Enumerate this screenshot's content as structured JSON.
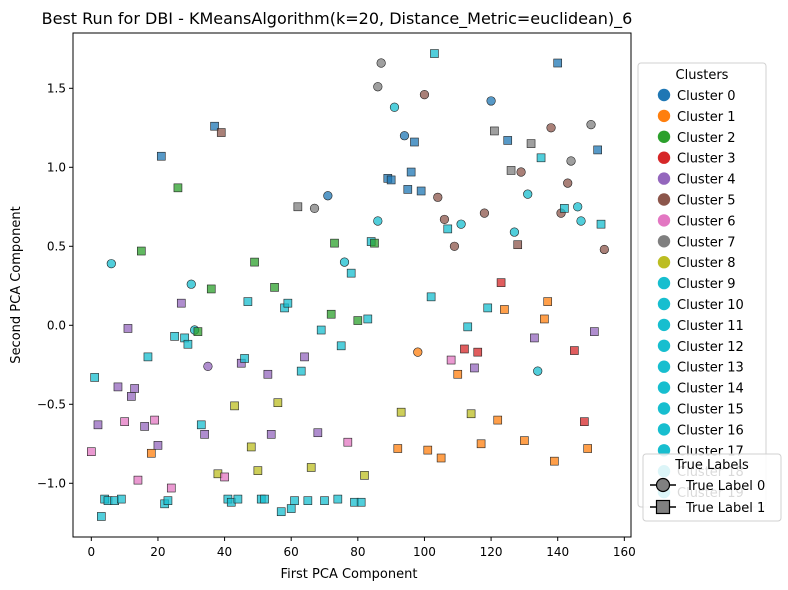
{
  "chart_data": {
    "type": "scatter",
    "title": "Best Run for DBI - KMeansAlgorithm(k=20, Distance_Metric=euclidean)_6",
    "xlabel": "First PCA Component",
    "ylabel": "Second PCA Component",
    "xlim": [
      -5.5,
      162
    ],
    "ylim": [
      -1.34,
      1.85
    ],
    "xticks": [
      0,
      20,
      40,
      60,
      80,
      100,
      120,
      140,
      160
    ],
    "yticks": [
      -1.0,
      -0.5,
      0.0,
      0.5,
      1.0,
      1.5
    ],
    "xtick_labels": [
      "0",
      "20",
      "40",
      "60",
      "80",
      "100",
      "120",
      "140",
      "160"
    ],
    "ytick_labels": [
      "−1.0",
      "−0.5",
      "0.0",
      "0.5",
      "1.0",
      "1.5"
    ],
    "grid": false,
    "legend_clusters": {
      "title": "Clusters",
      "placement": "right",
      "entries": [
        {
          "label": "Cluster 0",
          "color": "#1f77b4"
        },
        {
          "label": "Cluster 1",
          "color": "#ff7f0e"
        },
        {
          "label": "Cluster 2",
          "color": "#2ca02c"
        },
        {
          "label": "Cluster 3",
          "color": "#d62728"
        },
        {
          "label": "Cluster 4",
          "color": "#9467bd"
        },
        {
          "label": "Cluster 5",
          "color": "#8c564b"
        },
        {
          "label": "Cluster 6",
          "color": "#e377c2"
        },
        {
          "label": "Cluster 7",
          "color": "#7f7f7f"
        },
        {
          "label": "Cluster 8",
          "color": "#bcbd22"
        },
        {
          "label": "Cluster 9",
          "color": "#17becf"
        },
        {
          "label": "Cluster 10",
          "color": "#17becf"
        },
        {
          "label": "Cluster 11",
          "color": "#17becf"
        },
        {
          "label": "Cluster 12",
          "color": "#17becf"
        },
        {
          "label": "Cluster 13",
          "color": "#17becf"
        },
        {
          "label": "Cluster 14",
          "color": "#17becf"
        },
        {
          "label": "Cluster 15",
          "color": "#17becf"
        },
        {
          "label": "Cluster 16",
          "color": "#17becf"
        },
        {
          "label": "Cluster 17",
          "color": "#17becf"
        },
        {
          "label": "Cluster 18",
          "color": "#17becf"
        },
        {
          "label": "Cluster 19",
          "color": "#17becf"
        }
      ]
    },
    "legend_true_labels": {
      "title": "True Labels",
      "placement": "bottom-right",
      "entries": [
        {
          "label": "True Label 0",
          "marker": "circle"
        },
        {
          "label": "True Label 1",
          "marker": "square"
        }
      ]
    },
    "points": [
      {
        "x": 6,
        "y": 0.39,
        "c": 9,
        "m": "o"
      },
      {
        "x": 30,
        "y": 0.26,
        "c": 9,
        "m": "o"
      },
      {
        "x": 31,
        "y": -0.03,
        "c": 9,
        "m": "o"
      },
      {
        "x": 35,
        "y": -0.26,
        "c": 4,
        "m": "o"
      },
      {
        "x": 71,
        "y": 0.82,
        "c": 0,
        "m": "o"
      },
      {
        "x": 76,
        "y": 0.4,
        "c": 9,
        "m": "o"
      },
      {
        "x": 67,
        "y": 0.74,
        "c": 7,
        "m": "o"
      },
      {
        "x": 86,
        "y": 0.66,
        "c": 9,
        "m": "o"
      },
      {
        "x": 86,
        "y": 1.51,
        "c": 7,
        "m": "o"
      },
      {
        "x": 87,
        "y": 1.66,
        "c": 7,
        "m": "o"
      },
      {
        "x": 91,
        "y": 1.38,
        "c": 9,
        "m": "o"
      },
      {
        "x": 94,
        "y": 1.2,
        "c": 0,
        "m": "o"
      },
      {
        "x": 98,
        "y": -0.17,
        "c": 1,
        "m": "o"
      },
      {
        "x": 100,
        "y": 1.46,
        "c": 5,
        "m": "o"
      },
      {
        "x": 104,
        "y": 0.81,
        "c": 5,
        "m": "o"
      },
      {
        "x": 106,
        "y": 0.67,
        "c": 5,
        "m": "o"
      },
      {
        "x": 109,
        "y": 0.5,
        "c": 5,
        "m": "o"
      },
      {
        "x": 111,
        "y": 0.64,
        "c": 9,
        "m": "o"
      },
      {
        "x": 118,
        "y": 0.71,
        "c": 5,
        "m": "o"
      },
      {
        "x": 120,
        "y": 1.42,
        "c": 0,
        "m": "o"
      },
      {
        "x": 127,
        "y": 0.59,
        "c": 9,
        "m": "o"
      },
      {
        "x": 129,
        "y": 0.97,
        "c": 5,
        "m": "o"
      },
      {
        "x": 131,
        "y": 0.83,
        "c": 9,
        "m": "o"
      },
      {
        "x": 134,
        "y": -0.29,
        "c": 9,
        "m": "o"
      },
      {
        "x": 138,
        "y": 1.25,
        "c": 5,
        "m": "o"
      },
      {
        "x": 141,
        "y": 0.71,
        "c": 5,
        "m": "o"
      },
      {
        "x": 143,
        "y": 0.9,
        "c": 5,
        "m": "o"
      },
      {
        "x": 144,
        "y": 1.04,
        "c": 7,
        "m": "o"
      },
      {
        "x": 146,
        "y": 0.75,
        "c": 9,
        "m": "o"
      },
      {
        "x": 147,
        "y": 0.66,
        "c": 9,
        "m": "o"
      },
      {
        "x": 150,
        "y": 1.27,
        "c": 7,
        "m": "o"
      },
      {
        "x": 154,
        "y": 0.48,
        "c": 5,
        "m": "o"
      },
      {
        "x": 0,
        "y": -0.8,
        "c": 6,
        "m": "s"
      },
      {
        "x": 1,
        "y": -0.33,
        "c": 9,
        "m": "s"
      },
      {
        "x": 2,
        "y": -0.63,
        "c": 4,
        "m": "s"
      },
      {
        "x": 3,
        "y": -1.21,
        "c": 9,
        "m": "s"
      },
      {
        "x": 4,
        "y": -1.1,
        "c": 9,
        "m": "s"
      },
      {
        "x": 5,
        "y": -1.11,
        "c": 9,
        "m": "s"
      },
      {
        "x": 7,
        "y": -1.11,
        "c": 9,
        "m": "s"
      },
      {
        "x": 8,
        "y": -0.39,
        "c": 4,
        "m": "s"
      },
      {
        "x": 9,
        "y": -1.1,
        "c": 9,
        "m": "s"
      },
      {
        "x": 10,
        "y": -0.61,
        "c": 6,
        "m": "s"
      },
      {
        "x": 11,
        "y": -0.02,
        "c": 4,
        "m": "s"
      },
      {
        "x": 12,
        "y": -0.45,
        "c": 4,
        "m": "s"
      },
      {
        "x": 13,
        "y": -0.4,
        "c": 4,
        "m": "s"
      },
      {
        "x": 14,
        "y": -0.98,
        "c": 6,
        "m": "s"
      },
      {
        "x": 15,
        "y": 0.47,
        "c": 2,
        "m": "s"
      },
      {
        "x": 16,
        "y": -0.64,
        "c": 4,
        "m": "s"
      },
      {
        "x": 17,
        "y": -0.2,
        "c": 9,
        "m": "s"
      },
      {
        "x": 18,
        "y": -0.81,
        "c": 1,
        "m": "s"
      },
      {
        "x": 19,
        "y": -0.6,
        "c": 6,
        "m": "s"
      },
      {
        "x": 20,
        "y": -0.76,
        "c": 4,
        "m": "s"
      },
      {
        "x": 21,
        "y": 1.07,
        "c": 0,
        "m": "s"
      },
      {
        "x": 22,
        "y": -1.13,
        "c": 9,
        "m": "s"
      },
      {
        "x": 23,
        "y": -1.11,
        "c": 9,
        "m": "s"
      },
      {
        "x": 24,
        "y": -1.03,
        "c": 6,
        "m": "s"
      },
      {
        "x": 25,
        "y": -0.07,
        "c": 9,
        "m": "s"
      },
      {
        "x": 26,
        "y": 0.87,
        "c": 2,
        "m": "s"
      },
      {
        "x": 27,
        "y": 0.14,
        "c": 4,
        "m": "s"
      },
      {
        "x": 28,
        "y": -0.08,
        "c": 9,
        "m": "s"
      },
      {
        "x": 29,
        "y": -0.12,
        "c": 9,
        "m": "s"
      },
      {
        "x": 32,
        "y": -0.04,
        "c": 2,
        "m": "s"
      },
      {
        "x": 33,
        "y": -0.63,
        "c": 9,
        "m": "s"
      },
      {
        "x": 34,
        "y": -0.69,
        "c": 4,
        "m": "s"
      },
      {
        "x": 36,
        "y": 0.23,
        "c": 2,
        "m": "s"
      },
      {
        "x": 37,
        "y": 1.26,
        "c": 0,
        "m": "s"
      },
      {
        "x": 38,
        "y": -0.94,
        "c": 8,
        "m": "s"
      },
      {
        "x": 39,
        "y": 1.22,
        "c": 5,
        "m": "s"
      },
      {
        "x": 40,
        "y": -0.96,
        "c": 6,
        "m": "s"
      },
      {
        "x": 41,
        "y": -1.1,
        "c": 9,
        "m": "s"
      },
      {
        "x": 42,
        "y": -1.12,
        "c": 9,
        "m": "s"
      },
      {
        "x": 43,
        "y": -0.51,
        "c": 8,
        "m": "s"
      },
      {
        "x": 44,
        "y": -1.1,
        "c": 9,
        "m": "s"
      },
      {
        "x": 45,
        "y": -0.24,
        "c": 4,
        "m": "s"
      },
      {
        "x": 46,
        "y": -0.21,
        "c": 9,
        "m": "s"
      },
      {
        "x": 47,
        "y": 0.15,
        "c": 9,
        "m": "s"
      },
      {
        "x": 48,
        "y": -0.77,
        "c": 8,
        "m": "s"
      },
      {
        "x": 49,
        "y": 0.4,
        "c": 2,
        "m": "s"
      },
      {
        "x": 50,
        "y": -0.92,
        "c": 8,
        "m": "s"
      },
      {
        "x": 51,
        "y": -1.1,
        "c": 9,
        "m": "s"
      },
      {
        "x": 52,
        "y": -1.1,
        "c": 9,
        "m": "s"
      },
      {
        "x": 53,
        "y": -0.31,
        "c": 4,
        "m": "s"
      },
      {
        "x": 54,
        "y": -0.69,
        "c": 4,
        "m": "s"
      },
      {
        "x": 55,
        "y": 0.24,
        "c": 2,
        "m": "s"
      },
      {
        "x": 56,
        "y": -0.49,
        "c": 8,
        "m": "s"
      },
      {
        "x": 57,
        "y": -1.18,
        "c": 9,
        "m": "s"
      },
      {
        "x": 58,
        "y": 0.11,
        "c": 9,
        "m": "s"
      },
      {
        "x": 59,
        "y": 0.14,
        "c": 9,
        "m": "s"
      },
      {
        "x": 60,
        "y": -1.16,
        "c": 9,
        "m": "s"
      },
      {
        "x": 61,
        "y": -1.11,
        "c": 9,
        "m": "s"
      },
      {
        "x": 62,
        "y": 0.75,
        "c": 7,
        "m": "s"
      },
      {
        "x": 63,
        "y": -0.29,
        "c": 9,
        "m": "s"
      },
      {
        "x": 64,
        "y": -0.2,
        "c": 4,
        "m": "s"
      },
      {
        "x": 65,
        "y": -1.11,
        "c": 9,
        "m": "s"
      },
      {
        "x": 66,
        "y": -0.9,
        "c": 8,
        "m": "s"
      },
      {
        "x": 68,
        "y": -0.68,
        "c": 4,
        "m": "s"
      },
      {
        "x": 69,
        "y": -0.03,
        "c": 9,
        "m": "s"
      },
      {
        "x": 70,
        "y": -1.11,
        "c": 9,
        "m": "s"
      },
      {
        "x": 72,
        "y": 0.07,
        "c": 2,
        "m": "s"
      },
      {
        "x": 73,
        "y": 0.52,
        "c": 2,
        "m": "s"
      },
      {
        "x": 74,
        "y": -1.1,
        "c": 9,
        "m": "s"
      },
      {
        "x": 75,
        "y": -0.13,
        "c": 9,
        "m": "s"
      },
      {
        "x": 77,
        "y": -0.74,
        "c": 6,
        "m": "s"
      },
      {
        "x": 78,
        "y": 0.33,
        "c": 9,
        "m": "s"
      },
      {
        "x": 79,
        "y": -1.12,
        "c": 9,
        "m": "s"
      },
      {
        "x": 80,
        "y": 0.03,
        "c": 2,
        "m": "s"
      },
      {
        "x": 81,
        "y": -1.12,
        "c": 9,
        "m": "s"
      },
      {
        "x": 82,
        "y": -0.95,
        "c": 8,
        "m": "s"
      },
      {
        "x": 83,
        "y": 0.04,
        "c": 9,
        "m": "s"
      },
      {
        "x": 84,
        "y": 0.53,
        "c": 9,
        "m": "s"
      },
      {
        "x": 85,
        "y": 0.52,
        "c": 2,
        "m": "s"
      },
      {
        "x": 89,
        "y": 0.93,
        "c": 0,
        "m": "s"
      },
      {
        "x": 90,
        "y": 0.92,
        "c": 0,
        "m": "s"
      },
      {
        "x": 92,
        "y": -0.78,
        "c": 1,
        "m": "s"
      },
      {
        "x": 93,
        "y": -0.55,
        "c": 8,
        "m": "s"
      },
      {
        "x": 95,
        "y": 0.86,
        "c": 0,
        "m": "s"
      },
      {
        "x": 96,
        "y": 0.97,
        "c": 0,
        "m": "s"
      },
      {
        "x": 97,
        "y": 1.16,
        "c": 0,
        "m": "s"
      },
      {
        "x": 99,
        "y": 0.85,
        "c": 0,
        "m": "s"
      },
      {
        "x": 101,
        "y": -0.79,
        "c": 1,
        "m": "s"
      },
      {
        "x": 102,
        "y": 0.18,
        "c": 9,
        "m": "s"
      },
      {
        "x": 103,
        "y": 1.72,
        "c": 9,
        "m": "s"
      },
      {
        "x": 105,
        "y": -0.84,
        "c": 1,
        "m": "s"
      },
      {
        "x": 107,
        "y": 0.61,
        "c": 9,
        "m": "s"
      },
      {
        "x": 108,
        "y": -0.22,
        "c": 6,
        "m": "s"
      },
      {
        "x": 110,
        "y": -0.31,
        "c": 1,
        "m": "s"
      },
      {
        "x": 112,
        "y": -0.15,
        "c": 3,
        "m": "s"
      },
      {
        "x": 113,
        "y": -0.01,
        "c": 9,
        "m": "s"
      },
      {
        "x": 114,
        "y": -0.56,
        "c": 8,
        "m": "s"
      },
      {
        "x": 115,
        "y": -0.27,
        "c": 4,
        "m": "s"
      },
      {
        "x": 116,
        "y": -0.17,
        "c": 3,
        "m": "s"
      },
      {
        "x": 117,
        "y": -0.75,
        "c": 1,
        "m": "s"
      },
      {
        "x": 119,
        "y": 0.11,
        "c": 9,
        "m": "s"
      },
      {
        "x": 121,
        "y": 1.23,
        "c": 7,
        "m": "s"
      },
      {
        "x": 122,
        "y": -0.6,
        "c": 1,
        "m": "s"
      },
      {
        "x": 123,
        "y": 0.27,
        "c": 3,
        "m": "s"
      },
      {
        "x": 124,
        "y": 0.1,
        "c": 1,
        "m": "s"
      },
      {
        "x": 125,
        "y": 1.17,
        "c": 0,
        "m": "s"
      },
      {
        "x": 126,
        "y": 0.98,
        "c": 7,
        "m": "s"
      },
      {
        "x": 128,
        "y": 0.51,
        "c": 5,
        "m": "s"
      },
      {
        "x": 130,
        "y": -0.73,
        "c": 1,
        "m": "s"
      },
      {
        "x": 132,
        "y": 1.15,
        "c": 7,
        "m": "s"
      },
      {
        "x": 133,
        "y": -0.08,
        "c": 4,
        "m": "s"
      },
      {
        "x": 135,
        "y": 1.06,
        "c": 9,
        "m": "s"
      },
      {
        "x": 136,
        "y": 0.04,
        "c": 1,
        "m": "s"
      },
      {
        "x": 137,
        "y": 0.15,
        "c": 1,
        "m": "s"
      },
      {
        "x": 139,
        "y": -0.86,
        "c": 1,
        "m": "s"
      },
      {
        "x": 140,
        "y": 1.66,
        "c": 0,
        "m": "s"
      },
      {
        "x": 142,
        "y": 0.74,
        "c": 9,
        "m": "s"
      },
      {
        "x": 145,
        "y": -0.16,
        "c": 3,
        "m": "s"
      },
      {
        "x": 148,
        "y": -0.61,
        "c": 3,
        "m": "s"
      },
      {
        "x": 149,
        "y": -0.78,
        "c": 1,
        "m": "s"
      },
      {
        "x": 151,
        "y": -0.04,
        "c": 4,
        "m": "s"
      },
      {
        "x": 152,
        "y": 1.11,
        "c": 0,
        "m": "s"
      },
      {
        "x": 153,
        "y": 0.64,
        "c": 9,
        "m": "s"
      }
    ]
  }
}
